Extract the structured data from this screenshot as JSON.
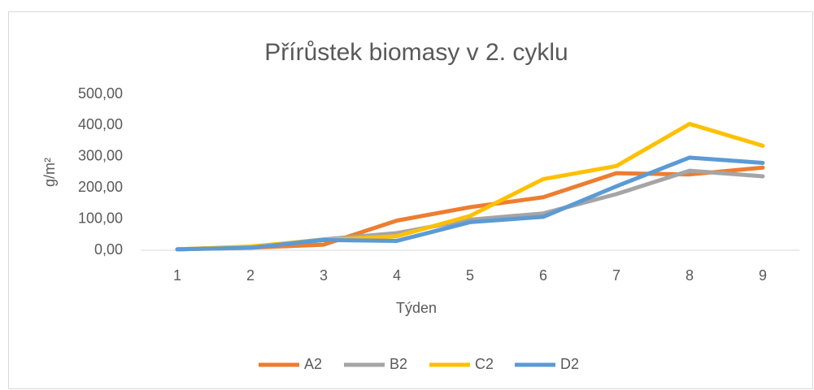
{
  "chart_data": {
    "type": "line",
    "title": "Přírůstek biomasy v 2. cyklu",
    "x_label": "Týden",
    "y_label": "g/m²",
    "categories": [
      "1",
      "2",
      "3",
      "4",
      "5",
      "6",
      "7",
      "8",
      "9"
    ],
    "series": [
      {
        "name": "A2",
        "color": "#ed7d31",
        "values": [
          3,
          8,
          18,
          95,
          138,
          170,
          247,
          243,
          265
        ]
      },
      {
        "name": "B2",
        "color": "#a5a5a5",
        "values": [
          3,
          10,
          35,
          55,
          98,
          118,
          180,
          255,
          237
        ]
      },
      {
        "name": "C2",
        "color": "#ffc000",
        "values": [
          3,
          12,
          33,
          45,
          110,
          228,
          270,
          405,
          335
        ]
      },
      {
        "name": "D2",
        "color": "#5b9bd5",
        "values": [
          3,
          8,
          33,
          30,
          90,
          107,
          205,
          297,
          280
        ]
      }
    ],
    "ylim": [
      0,
      500
    ],
    "yticks": [
      {
        "value": 0,
        "label": "0,00"
      },
      {
        "value": 100,
        "label": "100,00"
      },
      {
        "value": 200,
        "label": "200,00"
      },
      {
        "value": 300,
        "label": "300,00"
      },
      {
        "value": 400,
        "label": "400,00"
      },
      {
        "value": 500,
        "label": "500,00"
      }
    ],
    "grid": false,
    "legend": "bottom"
  }
}
